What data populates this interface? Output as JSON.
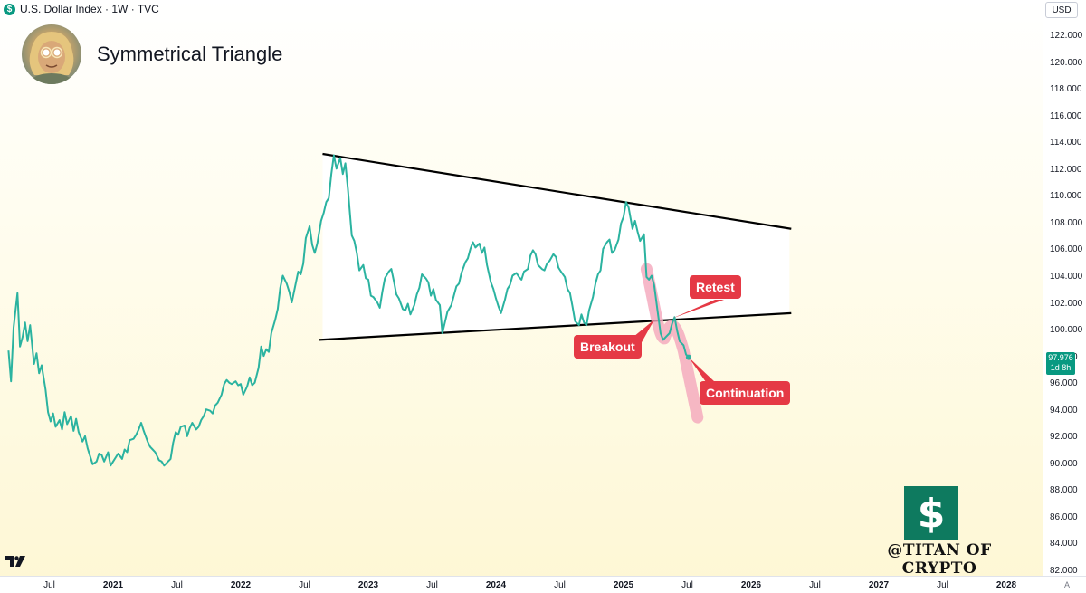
{
  "header": {
    "symbol_icon": "$",
    "symbol_text": "U.S. Dollar Index · 1W · TVC"
  },
  "title": "Symmetrical Triangle",
  "currency": "USD",
  "price_tag": {
    "value": "97.976",
    "time": "1d 8h",
    "color": "#089981"
  },
  "annotations": {
    "retest": "Retest",
    "breakout": "Breakout",
    "continuation": "Continuation"
  },
  "watermark": {
    "icon": "$",
    "text": "@TITAN OF CRYPTO"
  },
  "axis_corner": "A",
  "colors": {
    "line": "#2bb3a0",
    "annotation": "#e53945",
    "highlight": "#f4a6bb",
    "triangle_fill": "#ffffff",
    "triangle_edge": "#000000"
  },
  "chart_data": {
    "type": "line",
    "title": "Symmetrical Triangle",
    "xlabel": "",
    "ylabel": "",
    "xlim": [
      2020.2,
      2028.3
    ],
    "ylim": [
      82,
      123
    ],
    "y_ticks": [
      {
        "value": 122,
        "label": "122.000"
      },
      {
        "value": 120,
        "label": "120.000"
      },
      {
        "value": 118,
        "label": "118.000"
      },
      {
        "value": 116,
        "label": "116.000"
      },
      {
        "value": 114,
        "label": "114.000"
      },
      {
        "value": 112,
        "label": "112.000"
      },
      {
        "value": 110,
        "label": "110.000"
      },
      {
        "value": 108,
        "label": "108.000"
      },
      {
        "value": 106,
        "label": "106.000"
      },
      {
        "value": 104,
        "label": "104.000"
      },
      {
        "value": 102,
        "label": "102.000"
      },
      {
        "value": 100,
        "label": "100.000"
      },
      {
        "value": 98,
        "label": "98.000"
      },
      {
        "value": 96,
        "label": "96.000"
      },
      {
        "value": 94,
        "label": "94.000"
      },
      {
        "value": 92,
        "label": "92.000"
      },
      {
        "value": 90,
        "label": "90.000"
      },
      {
        "value": 88,
        "label": "88.000"
      },
      {
        "value": 86,
        "label": "86.000"
      },
      {
        "value": 84,
        "label": "84.000"
      },
      {
        "value": 82,
        "label": "82.000"
      }
    ],
    "x_ticks": [
      {
        "value": 2020.5,
        "label": "Jul",
        "year": false
      },
      {
        "value": 2021.0,
        "label": "2021",
        "year": true
      },
      {
        "value": 2021.5,
        "label": "Jul",
        "year": false
      },
      {
        "value": 2022.0,
        "label": "2022",
        "year": true
      },
      {
        "value": 2022.5,
        "label": "Jul",
        "year": false
      },
      {
        "value": 2023.0,
        "label": "2023",
        "year": true
      },
      {
        "value": 2023.5,
        "label": "Jul",
        "year": false
      },
      {
        "value": 2024.0,
        "label": "2024",
        "year": true
      },
      {
        "value": 2024.5,
        "label": "Jul",
        "year": false
      },
      {
        "value": 2025.0,
        "label": "2025",
        "year": true
      },
      {
        "value": 2025.5,
        "label": "Jul",
        "year": false
      },
      {
        "value": 2026.0,
        "label": "2026",
        "year": true
      },
      {
        "value": 2026.5,
        "label": "Jul",
        "year": false
      },
      {
        "value": 2027.0,
        "label": "2027",
        "year": true
      },
      {
        "value": 2027.5,
        "label": "Jul",
        "year": false
      },
      {
        "value": 2028.0,
        "label": "2028",
        "year": true
      }
    ],
    "series": [
      {
        "points": [
          [
            2020.18,
            98.5
          ],
          [
            2020.2,
            96.2
          ],
          [
            2020.22,
            100.2
          ],
          [
            2020.25,
            102.8
          ],
          [
            2020.27,
            98.8
          ],
          [
            2020.29,
            99.5
          ],
          [
            2020.31,
            100.6
          ],
          [
            2020.33,
            99.2
          ],
          [
            2020.35,
            100.4
          ],
          [
            2020.38,
            97.5
          ],
          [
            2020.4,
            98.3
          ],
          [
            2020.42,
            96.8
          ],
          [
            2020.44,
            97.4
          ],
          [
            2020.47,
            95.6
          ],
          [
            2020.49,
            93.9
          ],
          [
            2020.51,
            93.2
          ],
          [
            2020.53,
            93.8
          ],
          [
            2020.55,
            92.8
          ],
          [
            2020.58,
            93.3
          ],
          [
            2020.6,
            92.6
          ],
          [
            2020.62,
            93.9
          ],
          [
            2020.64,
            93.0
          ],
          [
            2020.67,
            93.6
          ],
          [
            2020.69,
            92.5
          ],
          [
            2020.71,
            93.4
          ],
          [
            2020.73,
            92.4
          ],
          [
            2020.76,
            91.7
          ],
          [
            2020.78,
            92.1
          ],
          [
            2020.8,
            91.2
          ],
          [
            2020.82,
            90.6
          ],
          [
            2020.84,
            90.0
          ],
          [
            2020.87,
            90.2
          ],
          [
            2020.89,
            90.8
          ],
          [
            2020.91,
            90.7
          ],
          [
            2020.93,
            90.2
          ],
          [
            2020.96,
            90.9
          ],
          [
            2020.98,
            89.9
          ],
          [
            2021.0,
            90.2
          ],
          [
            2021.02,
            90.5
          ],
          [
            2021.04,
            90.8
          ],
          [
            2021.07,
            90.4
          ],
          [
            2021.09,
            91.1
          ],
          [
            2021.11,
            90.9
          ],
          [
            2021.13,
            91.8
          ],
          [
            2021.16,
            91.9
          ],
          [
            2021.18,
            92.2
          ],
          [
            2021.2,
            92.6
          ],
          [
            2021.22,
            93.1
          ],
          [
            2021.24,
            92.5
          ],
          [
            2021.27,
            91.7
          ],
          [
            2021.29,
            91.3
          ],
          [
            2021.31,
            91.1
          ],
          [
            2021.33,
            90.9
          ],
          [
            2021.36,
            90.3
          ],
          [
            2021.38,
            90.2
          ],
          [
            2021.4,
            89.9
          ],
          [
            2021.42,
            90.1
          ],
          [
            2021.45,
            90.4
          ],
          [
            2021.47,
            91.6
          ],
          [
            2021.49,
            92.4
          ],
          [
            2021.51,
            92.2
          ],
          [
            2021.53,
            92.8
          ],
          [
            2021.56,
            92.9
          ],
          [
            2021.58,
            92.1
          ],
          [
            2021.6,
            92.7
          ],
          [
            2021.62,
            93.1
          ],
          [
            2021.65,
            92.6
          ],
          [
            2021.67,
            92.8
          ],
          [
            2021.69,
            93.3
          ],
          [
            2021.71,
            93.6
          ],
          [
            2021.73,
            94.1
          ],
          [
            2021.76,
            94.0
          ],
          [
            2021.78,
            93.8
          ],
          [
            2021.8,
            94.4
          ],
          [
            2021.82,
            94.6
          ],
          [
            2021.85,
            95.2
          ],
          [
            2021.87,
            96.0
          ],
          [
            2021.89,
            96.3
          ],
          [
            2021.91,
            96.1
          ],
          [
            2021.93,
            96.0
          ],
          [
            2021.96,
            96.2
          ],
          [
            2021.98,
            95.9
          ],
          [
            2022.0,
            96.0
          ],
          [
            2022.02,
            95.2
          ],
          [
            2022.05,
            95.8
          ],
          [
            2022.07,
            96.5
          ],
          [
            2022.09,
            95.9
          ],
          [
            2022.11,
            96.1
          ],
          [
            2022.14,
            97.2
          ],
          [
            2022.16,
            98.8
          ],
          [
            2022.18,
            98.1
          ],
          [
            2022.2,
            98.6
          ],
          [
            2022.22,
            98.4
          ],
          [
            2022.24,
            99.8
          ],
          [
            2022.27,
            100.8
          ],
          [
            2022.29,
            101.6
          ],
          [
            2022.31,
            103.2
          ],
          [
            2022.33,
            104.1
          ],
          [
            2022.36,
            103.5
          ],
          [
            2022.38,
            102.9
          ],
          [
            2022.4,
            102.1
          ],
          [
            2022.42,
            103.0
          ],
          [
            2022.45,
            104.4
          ],
          [
            2022.47,
            104.2
          ],
          [
            2022.49,
            105.0
          ],
          [
            2022.51,
            106.9
          ],
          [
            2022.54,
            107.8
          ],
          [
            2022.56,
            106.4
          ],
          [
            2022.58,
            105.8
          ],
          [
            2022.6,
            106.5
          ],
          [
            2022.63,
            108.2
          ],
          [
            2022.65,
            108.8
          ],
          [
            2022.67,
            109.6
          ],
          [
            2022.69,
            109.9
          ],
          [
            2022.71,
            111.7
          ],
          [
            2022.73,
            113.1
          ],
          [
            2022.75,
            112.1
          ],
          [
            2022.78,
            112.9
          ],
          [
            2022.8,
            111.7
          ],
          [
            2022.82,
            112.5
          ],
          [
            2022.84,
            110.6
          ],
          [
            2022.87,
            107.1
          ],
          [
            2022.89,
            106.7
          ],
          [
            2022.91,
            105.8
          ],
          [
            2022.93,
            104.5
          ],
          [
            2022.96,
            104.9
          ],
          [
            2022.98,
            103.9
          ],
          [
            2023.0,
            103.8
          ],
          [
            2023.02,
            102.6
          ],
          [
            2023.04,
            102.5
          ],
          [
            2023.07,
            102.1
          ],
          [
            2023.09,
            101.7
          ],
          [
            2023.11,
            102.9
          ],
          [
            2023.13,
            103.9
          ],
          [
            2023.16,
            104.4
          ],
          [
            2023.18,
            104.6
          ],
          [
            2023.2,
            103.7
          ],
          [
            2023.22,
            102.7
          ],
          [
            2023.24,
            102.4
          ],
          [
            2023.27,
            101.6
          ],
          [
            2023.29,
            101.5
          ],
          [
            2023.31,
            102.0
          ],
          [
            2023.33,
            101.2
          ],
          [
            2023.36,
            101.9
          ],
          [
            2023.38,
            102.7
          ],
          [
            2023.4,
            103.2
          ],
          [
            2023.42,
            104.2
          ],
          [
            2023.45,
            103.9
          ],
          [
            2023.47,
            103.6
          ],
          [
            2023.49,
            102.6
          ],
          [
            2023.51,
            103.1
          ],
          [
            2023.53,
            102.3
          ],
          [
            2023.56,
            101.9
          ],
          [
            2023.58,
            99.8
          ],
          [
            2023.6,
            100.6
          ],
          [
            2023.62,
            101.4
          ],
          [
            2023.65,
            101.9
          ],
          [
            2023.67,
            102.6
          ],
          [
            2023.69,
            103.3
          ],
          [
            2023.71,
            103.5
          ],
          [
            2023.73,
            104.3
          ],
          [
            2023.76,
            105.1
          ],
          [
            2023.78,
            105.4
          ],
          [
            2023.8,
            106.1
          ],
          [
            2023.82,
            106.6
          ],
          [
            2023.84,
            106.2
          ],
          [
            2023.87,
            106.5
          ],
          [
            2023.89,
            105.8
          ],
          [
            2023.91,
            106.2
          ],
          [
            2023.93,
            104.9
          ],
          [
            2023.96,
            103.6
          ],
          [
            2023.98,
            103.1
          ],
          [
            2024.0,
            102.4
          ],
          [
            2024.02,
            101.8
          ],
          [
            2024.04,
            101.3
          ],
          [
            2024.07,
            102.3
          ],
          [
            2024.09,
            103.1
          ],
          [
            2024.11,
            103.4
          ],
          [
            2024.13,
            104.1
          ],
          [
            2024.16,
            104.3
          ],
          [
            2024.18,
            104.0
          ],
          [
            2024.2,
            103.8
          ],
          [
            2024.22,
            104.4
          ],
          [
            2024.25,
            104.6
          ],
          [
            2024.27,
            105.6
          ],
          [
            2024.29,
            106.0
          ],
          [
            2024.31,
            105.7
          ],
          [
            2024.33,
            104.9
          ],
          [
            2024.36,
            104.6
          ],
          [
            2024.38,
            104.5
          ],
          [
            2024.4,
            105.0
          ],
          [
            2024.42,
            105.2
          ],
          [
            2024.45,
            105.7
          ],
          [
            2024.47,
            105.5
          ],
          [
            2024.49,
            104.7
          ],
          [
            2024.51,
            104.4
          ],
          [
            2024.54,
            104.0
          ],
          [
            2024.56,
            103.1
          ],
          [
            2024.58,
            102.8
          ],
          [
            2024.6,
            101.8
          ],
          [
            2024.62,
            100.7
          ],
          [
            2024.65,
            100.4
          ],
          [
            2024.67,
            101.2
          ],
          [
            2024.69,
            100.6
          ],
          [
            2024.71,
            100.4
          ],
          [
            2024.73,
            101.5
          ],
          [
            2024.76,
            102.5
          ],
          [
            2024.78,
            103.5
          ],
          [
            2024.8,
            104.2
          ],
          [
            2024.82,
            104.5
          ],
          [
            2024.84,
            106.1
          ],
          [
            2024.87,
            106.6
          ],
          [
            2024.89,
            106.8
          ],
          [
            2024.91,
            105.8
          ],
          [
            2024.93,
            106.0
          ],
          [
            2024.96,
            106.8
          ],
          [
            2024.98,
            108.0
          ],
          [
            2025.0,
            108.5
          ],
          [
            2025.02,
            109.6
          ],
          [
            2025.04,
            109.2
          ],
          [
            2025.07,
            107.6
          ],
          [
            2025.09,
            108.2
          ],
          [
            2025.11,
            107.4
          ],
          [
            2025.13,
            106.7
          ],
          [
            2025.16,
            107.2
          ],
          [
            2025.18,
            104.0
          ],
          [
            2025.2,
            103.8
          ],
          [
            2025.22,
            104.1
          ],
          [
            2025.24,
            103.4
          ],
          [
            2025.27,
            101.2
          ],
          [
            2025.29,
            99.8
          ],
          [
            2025.31,
            99.3
          ],
          [
            2025.33,
            99.5
          ],
          [
            2025.36,
            99.8
          ],
          [
            2025.38,
            100.5
          ],
          [
            2025.4,
            101.0
          ],
          [
            2025.42,
            100.0
          ],
          [
            2025.44,
            99.2
          ],
          [
            2025.47,
            98.9
          ],
          [
            2025.49,
            98.2
          ],
          [
            2025.51,
            98.0
          ]
        ]
      }
    ],
    "trendlines": [
      {
        "name": "upper",
        "from": [
          2022.67,
          113.2
        ],
        "to": [
          2026.3,
          107.6
        ]
      },
      {
        "name": "lower",
        "from": [
          2022.67,
          99.3
        ],
        "to": [
          2026.3,
          101.3
        ]
      }
    ],
    "last_value": 97.976
  }
}
